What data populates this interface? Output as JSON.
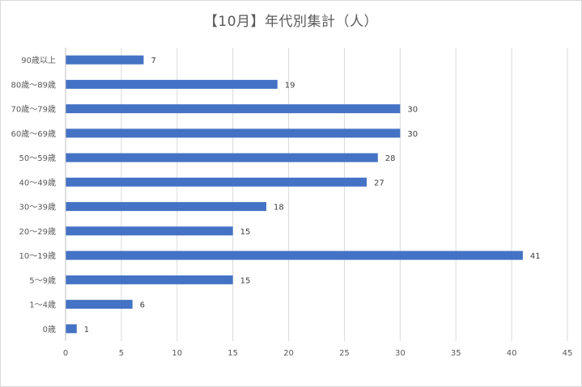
{
  "chart_data": {
    "type": "bar",
    "orientation": "horizontal",
    "title": "【10月】年代別集計（人）",
    "categories": [
      "90歳以上",
      "80歳〜89歳",
      "70歳〜79歳",
      "60歳〜69歳",
      "50〜59歳",
      "40〜49歳",
      "30〜39歳",
      "20〜29歳",
      "10〜19歳",
      "5〜9歳",
      "1〜4歳",
      "0歳"
    ],
    "values": [
      7,
      19,
      30,
      30,
      28,
      27,
      18,
      15,
      41,
      15,
      6,
      1
    ],
    "xlim": [
      0,
      45
    ],
    "xticks": [
      0,
      5,
      10,
      15,
      20,
      25,
      30,
      35,
      40,
      45
    ],
    "grid": "vertical",
    "data_labels": true,
    "bar_color": "#4472c4",
    "grid_color": "#d9d9d9"
  }
}
